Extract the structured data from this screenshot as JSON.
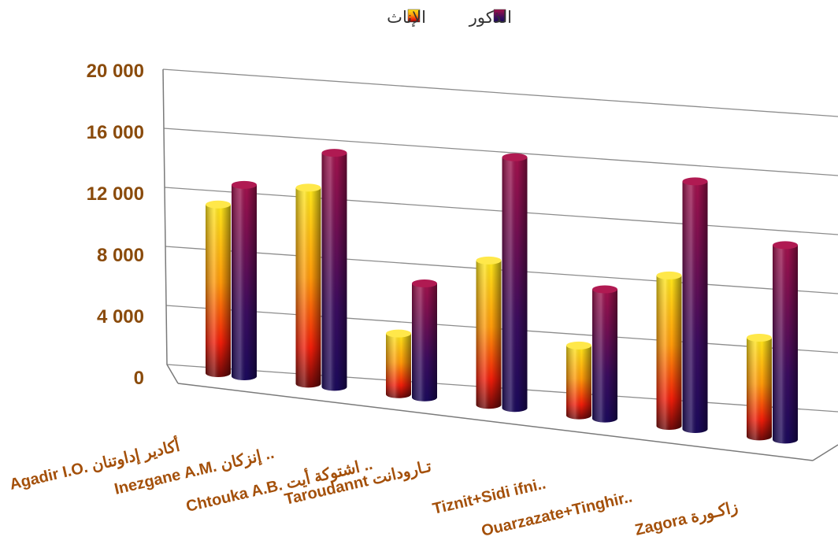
{
  "chart_data": {
    "type": "bar",
    "style": "3d-cylinder",
    "categories": [
      "Agadir I.O. أكادير إداوتنان",
      "Inezgane A.M. إنزكان ..",
      "Chtouka A.B. اشتوكة أيت ..",
      "Taroudannt تـارودانت",
      "Tiznit+Sidi ifni..",
      "Ouarzazate+Tinghir..",
      "Zagora زاكـورة"
    ],
    "series": [
      {
        "name": "الإناث",
        "values": [
          11100,
          12900,
          4000,
          9500,
          4600,
          9900,
          6500
        ],
        "color": "#f6a300"
      },
      {
        "name": "الذكور",
        "values": [
          12600,
          15400,
          7500,
          16500,
          8500,
          16300,
          12800
        ],
        "color": "#6a0f4e"
      }
    ],
    "ylim": [
      0,
      20000
    ],
    "yticks": [
      "0",
      "4 000",
      "8 000",
      "12 000",
      "16 000",
      "20 000"
    ],
    "ytick_values": [
      0,
      4000,
      8000,
      12000,
      16000,
      20000
    ],
    "grid": true,
    "legend_position": "top"
  }
}
